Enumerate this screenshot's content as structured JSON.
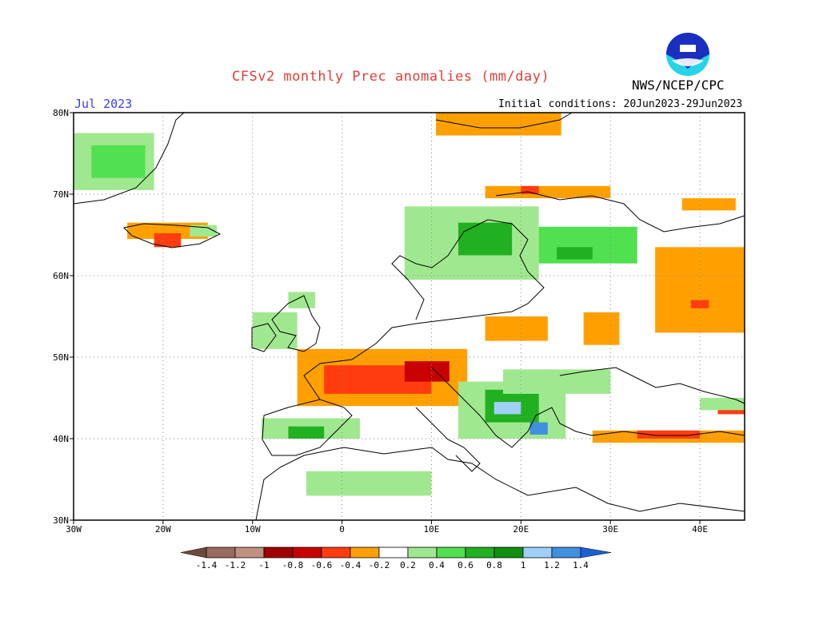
{
  "header": {
    "title": "CFSv2 monthly Prec anomalies (mm/day)",
    "period": "Jul 2023",
    "initial_conditions": "Initial conditions: 20Jun2023-29Jun2023",
    "agency": "NWS/NCEP/CPC",
    "logo_text": "NOAA"
  },
  "map": {
    "lon_range": [
      -30,
      45
    ],
    "lat_range": [
      30,
      80
    ],
    "lon_ticks": [
      {
        "value": -30,
        "label": "30W"
      },
      {
        "value": -20,
        "label": "20W"
      },
      {
        "value": -10,
        "label": "10W"
      },
      {
        "value": 0,
        "label": "0"
      },
      {
        "value": 10,
        "label": "10E"
      },
      {
        "value": 20,
        "label": "20E"
      },
      {
        "value": 30,
        "label": "30E"
      },
      {
        "value": 40,
        "label": "40E"
      }
    ],
    "lat_ticks": [
      {
        "value": 30,
        "label": "30N"
      },
      {
        "value": 40,
        "label": "40N"
      },
      {
        "value": 50,
        "label": "50N"
      },
      {
        "value": 60,
        "label": "60N"
      },
      {
        "value": 70,
        "label": "70N"
      },
      {
        "value": 80,
        "label": "80N"
      }
    ],
    "gridlines": true,
    "anomaly_regions": [
      {
        "lon": [
          -30,
          -21
        ],
        "lat": [
          70.5,
          77.5
        ],
        "value": 0.3
      },
      {
        "lon": [
          -28,
          -22
        ],
        "lat": [
          72,
          76
        ],
        "value": 0.5
      },
      {
        "lon": [
          -24,
          -15
        ],
        "lat": [
          64.5,
          66.5
        ],
        "value": -0.3
      },
      {
        "lon": [
          -21,
          -18
        ],
        "lat": [
          63.5,
          65.2
        ],
        "value": -0.5
      },
      {
        "lon": [
          -17,
          -14
        ],
        "lat": [
          64.8,
          66.2
        ],
        "value": 0.3
      },
      {
        "lon": [
          10.5,
          24.5
        ],
        "lat": [
          77.2,
          80
        ],
        "value": -0.3
      },
      {
        "lon": [
          16,
          30
        ],
        "lat": [
          69.5,
          71
        ],
        "value": -0.3
      },
      {
        "lon": [
          20,
          22
        ],
        "lat": [
          70,
          71
        ],
        "value": -0.5
      },
      {
        "lon": [
          38,
          44
        ],
        "lat": [
          68,
          69.5
        ],
        "value": -0.3
      },
      {
        "lon": [
          7,
          22
        ],
        "lat": [
          59.5,
          68.5
        ],
        "value": 0.3
      },
      {
        "lon": [
          13,
          19
        ],
        "lat": [
          62.5,
          66.5
        ],
        "value": 0.6
      },
      {
        "lon": [
          22,
          33
        ],
        "lat": [
          61.5,
          66
        ],
        "value": 0.4
      },
      {
        "lon": [
          24,
          28
        ],
        "lat": [
          62,
          63.5
        ],
        "value": 0.7
      },
      {
        "lon": [
          35,
          45
        ],
        "lat": [
          53,
          63.5
        ],
        "value": -0.3
      },
      {
        "lon": [
          39,
          41
        ],
        "lat": [
          56,
          57
        ],
        "value": -0.5
      },
      {
        "lon": [
          27,
          31
        ],
        "lat": [
          51.5,
          55.5
        ],
        "value": -0.3
      },
      {
        "lon": [
          16,
          23
        ],
        "lat": [
          52,
          55
        ],
        "value": -0.3
      },
      {
        "lon": [
          -5,
          14
        ],
        "lat": [
          44,
          51
        ],
        "value": -0.3
      },
      {
        "lon": [
          -2,
          10
        ],
        "lat": [
          45.5,
          49
        ],
        "value": -0.5
      },
      {
        "lon": [
          7,
          12
        ],
        "lat": [
          47,
          49.5
        ],
        "value": -0.7
      },
      {
        "lon": [
          13,
          25
        ],
        "lat": [
          40,
          47
        ],
        "value": 0.3
      },
      {
        "lon": [
          16,
          22
        ],
        "lat": [
          42,
          46
        ],
        "value": 0.6
      },
      {
        "lon": [
          17,
          20
        ],
        "lat": [
          43,
          44.5
        ],
        "value": 1.1
      },
      {
        "lon": [
          21,
          23
        ],
        "lat": [
          40.5,
          42
        ],
        "value": 1.3
      },
      {
        "lon": [
          -9,
          2
        ],
        "lat": [
          40,
          42.5
        ],
        "value": 0.3
      },
      {
        "lon": [
          -6,
          -2
        ],
        "lat": [
          40,
          41.5
        ],
        "value": 0.6
      },
      {
        "lon": [
          -4,
          10
        ],
        "lat": [
          33,
          36
        ],
        "value": 0.3
      },
      {
        "lon": [
          -10,
          -5
        ],
        "lat": [
          51,
          55.5
        ],
        "value": 0.3
      },
      {
        "lon": [
          -6,
          -3
        ],
        "lat": [
          56,
          58
        ],
        "value": 0.3
      },
      {
        "lon": [
          18,
          30
        ],
        "lat": [
          45.5,
          48.5
        ],
        "value": 0.3
      },
      {
        "lon": [
          28,
          45
        ],
        "lat": [
          39.5,
          41
        ],
        "value": -0.3
      },
      {
        "lon": [
          33,
          40
        ],
        "lat": [
          40,
          41
        ],
        "value": -0.5
      },
      {
        "lon": [
          42,
          45
        ],
        "lat": [
          43,
          44.5
        ],
        "value": -0.5
      },
      {
        "lon": [
          40,
          45
        ],
        "lat": [
          43.5,
          45
        ],
        "value": 0.3
      }
    ]
  },
  "colorbar": {
    "bounds": [
      -1.4,
      -1.2,
      -1,
      -0.8,
      -0.6,
      -0.4,
      -0.2,
      0.2,
      0.4,
      0.6,
      0.8,
      1,
      1.2,
      1.4
    ],
    "labels": [
      "-1.4",
      "-1.2",
      "-1",
      "-0.8",
      "-0.6",
      "-0.4",
      "-0.2",
      "0.2",
      "0.4",
      "0.6",
      "0.8",
      "1",
      "1.2",
      "1.4"
    ],
    "colors": [
      "#6e4a3a",
      "#9a6b5e",
      "#c09080",
      "#a00000",
      "#c80000",
      "#ff3c10",
      "#ffa000",
      "#ffffff",
      "#a0e890",
      "#50e050",
      "#20b020",
      "#109010",
      "#a0d0f8",
      "#4090e0",
      "#1a60d0"
    ]
  }
}
